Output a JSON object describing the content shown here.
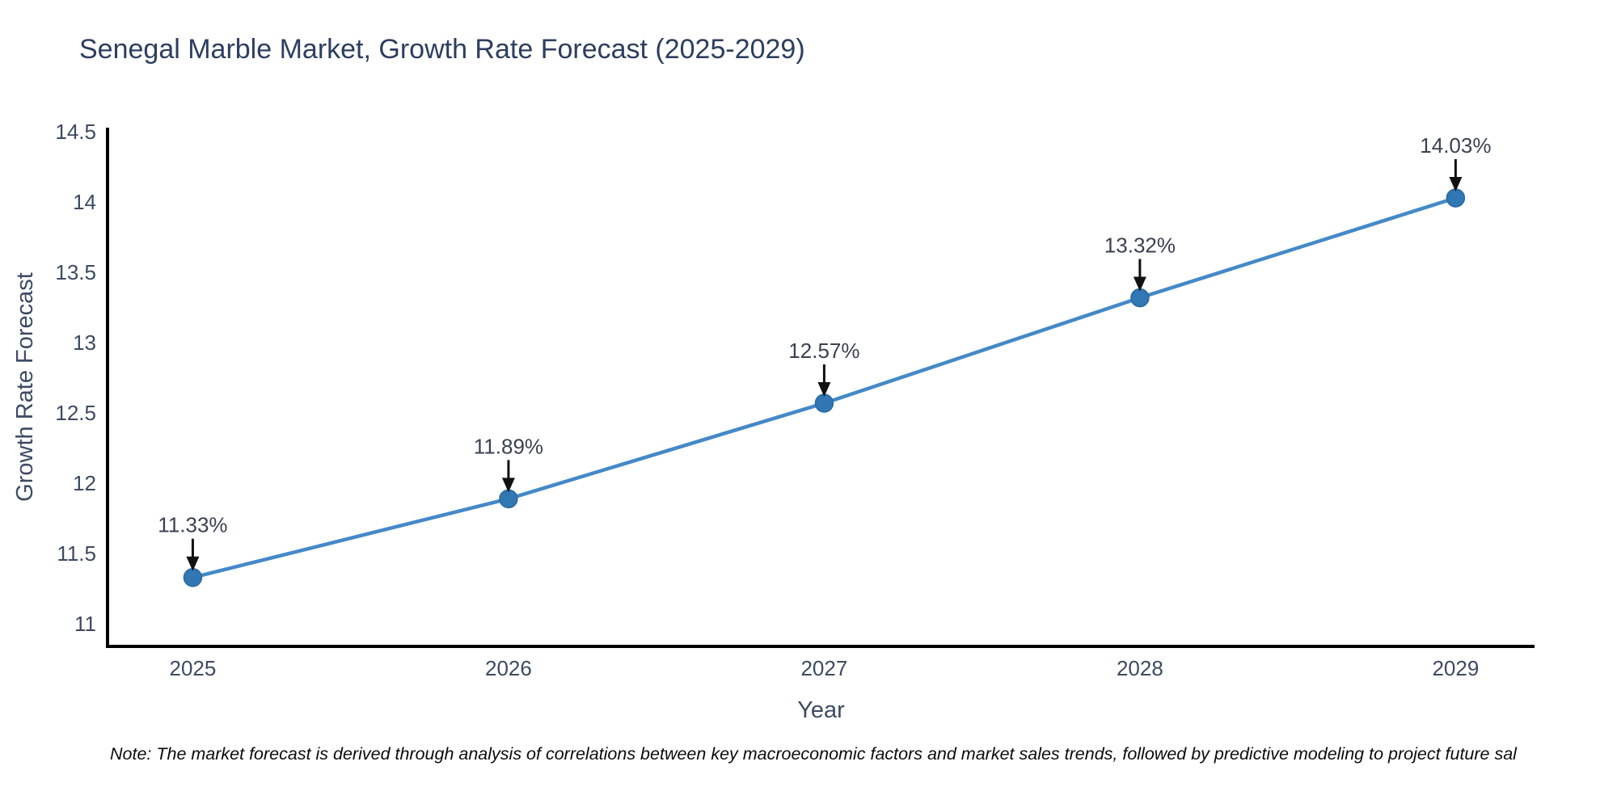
{
  "title": "Senegal Marble Market, Growth Rate Forecast (2025-2029)",
  "note": "Note: The market forecast is derived through analysis of correlations between key macroeconomic factors and market sales trends, followed by predictive modeling to project future sal",
  "colors": {
    "line": "#4489c8",
    "marker": "#3077b4",
    "marker_edge": "#2a6aa0",
    "axis": "#000000",
    "arrow": "#111111",
    "tick_text": "#3d4a63",
    "title_text": "#2d3e5f"
  },
  "chart_data": {
    "type": "line",
    "title": "Senegal Marble Market, Growth Rate Forecast (2025-2029)",
    "xlabel": "Year",
    "ylabel": "Growth Rate Forecast",
    "x": [
      2025,
      2026,
      2027,
      2028,
      2029
    ],
    "values": [
      11.33,
      11.89,
      12.57,
      13.32,
      14.03
    ],
    "labels": [
      "11.33%",
      "11.89%",
      "12.57%",
      "13.32%",
      "14.03%"
    ],
    "yticks": [
      11,
      11.5,
      12,
      12.5,
      13,
      13.5,
      14,
      14.5
    ],
    "ylim": [
      10.84,
      14.53
    ],
    "xlim": [
      2024.73,
      2029.25
    ],
    "grid": false,
    "legend": "none",
    "annotations": "black down-arrow pointing at each data point with percent label above"
  }
}
